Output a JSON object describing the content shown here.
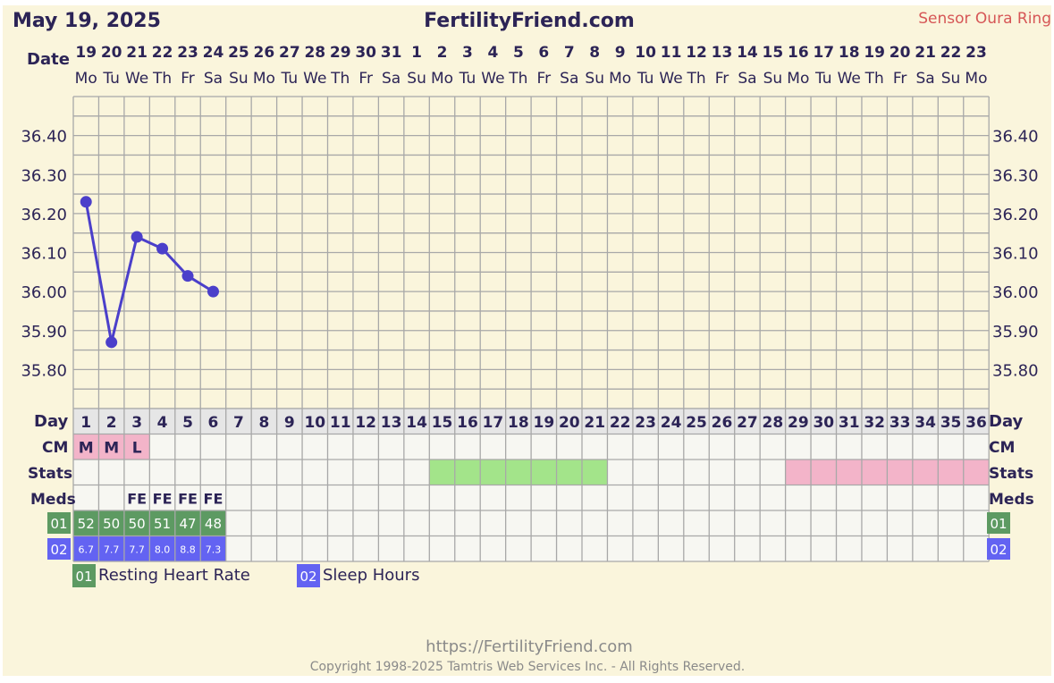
{
  "header": {
    "date": "May 19, 2025",
    "site": "FertilityFriend.com",
    "sensor": "Sensor Oura Ring"
  },
  "row_labels": {
    "date": "Date",
    "day": "Day",
    "cm": "CM",
    "stats": "Stats",
    "meds": "Meds"
  },
  "dates": [
    "19",
    "20",
    "21",
    "22",
    "23",
    "24",
    "25",
    "26",
    "27",
    "28",
    "29",
    "30",
    "31",
    "1",
    "2",
    "3",
    "4",
    "5",
    "6",
    "7",
    "8",
    "9",
    "10",
    "11",
    "12",
    "13",
    "14",
    "15",
    "16",
    "17",
    "18",
    "19",
    "20",
    "21",
    "22",
    "23"
  ],
  "weekdays": [
    "Mo",
    "Tu",
    "We",
    "Th",
    "Fr",
    "Sa",
    "Su",
    "Mo",
    "Tu",
    "We",
    "Th",
    "Fr",
    "Sa",
    "Su",
    "Mo",
    "Tu",
    "We",
    "Th",
    "Fr",
    "Sa",
    "Su",
    "Mo",
    "Tu",
    "We",
    "Th",
    "Fr",
    "Sa",
    "Su",
    "Mo",
    "Tu",
    "We",
    "Th",
    "Fr",
    "Sa",
    "Su",
    "Mo"
  ],
  "cm": [
    "M",
    "M",
    "L"
  ],
  "meds": [
    "",
    "",
    "FE",
    "FE",
    "FE",
    "FE"
  ],
  "stats": {
    "green_range_days": [
      15,
      21
    ],
    "pink_range_days": [
      29,
      36
    ],
    "green_color": "#a3e48a",
    "pink_color": "#f3b4c9"
  },
  "legend": [
    {
      "code": "01",
      "label": "Resting Heart Rate",
      "color": "#5d9a62"
    },
    {
      "code": "02",
      "label": "Sleep Hours",
      "color": "#6363f2"
    }
  ],
  "extra_rows": [
    {
      "code": "01",
      "values": [
        "52",
        "50",
        "50",
        "51",
        "47",
        "48"
      ]
    },
    {
      "code": "02",
      "values": [
        "6.7",
        "7.7",
        "7.7",
        "8.0",
        "8.8",
        "7.3"
      ]
    }
  ],
  "chart_data": {
    "type": "line",
    "x": [
      1,
      2,
      3,
      4,
      5,
      6
    ],
    "series": [
      {
        "values": [
          36.23,
          35.87,
          36.14,
          36.11,
          36.04,
          36.0
        ]
      }
    ],
    "y_ticks": [
      "36.40",
      "36.30",
      "36.20",
      "36.10",
      "36.00",
      "35.90",
      "35.80"
    ],
    "ylim": [
      35.7,
      36.5
    ],
    "xlim": [
      1,
      36
    ],
    "grid": true,
    "line_color": "#4b3fca"
  },
  "footer": {
    "url": "https://FertilityFriend.com",
    "copyright": "Copyright 1998-2025 Tamtris Web Services Inc. - All Rights Reserved."
  },
  "colors": {
    "background": "#faf5dc",
    "title": "#2c2456",
    "sensor": "#d65656",
    "grid": "#a8a8a8",
    "cm_bg": "#f3b4c9"
  }
}
